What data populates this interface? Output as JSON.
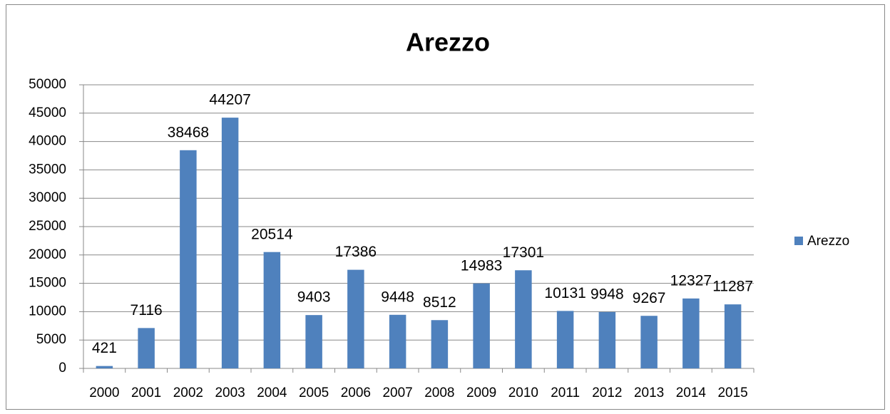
{
  "chart_data": {
    "type": "bar",
    "title": "Arezzo",
    "categories": [
      "2000",
      "2001",
      "2002",
      "2003",
      "2004",
      "2005",
      "2006",
      "2007",
      "2008",
      "2009",
      "2010",
      "2011",
      "2012",
      "2013",
      "2014",
      "2015"
    ],
    "series": [
      {
        "name": "Arezzo",
        "color": "#4f81bd",
        "values": [
          421,
          7116,
          38468,
          44207,
          20514,
          9403,
          17386,
          9448,
          8512,
          14983,
          17301,
          10131,
          9948,
          9267,
          12327,
          11287
        ]
      }
    ],
    "ylim": [
      0,
      50000
    ],
    "yticks": [
      0,
      5000,
      10000,
      15000,
      20000,
      25000,
      30000,
      35000,
      40000,
      45000,
      50000
    ],
    "grid": true,
    "legend": "right"
  }
}
